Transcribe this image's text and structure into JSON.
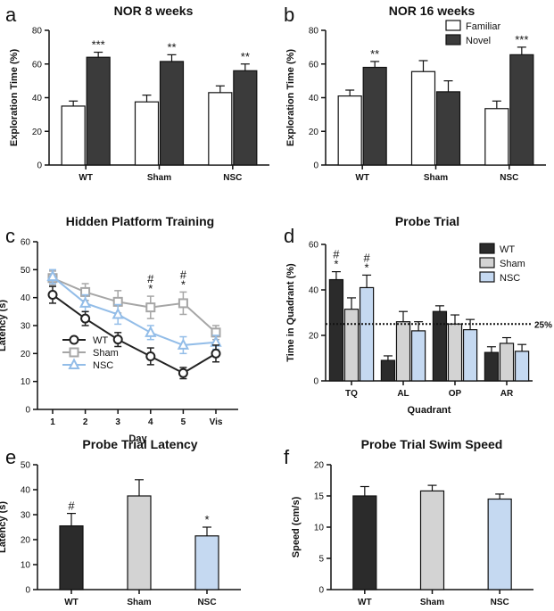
{
  "colors": {
    "WT": "#2b2b2b",
    "Sham": "#d3d3d3",
    "NSC": "#c5d9f1",
    "Familiar": "#ffffff",
    "Novel": "#3b3b3b",
    "line_WT": "#222222",
    "line_Sham": "#a6a6a6",
    "line_NSC": "#93bde8"
  },
  "chart_data": [
    {
      "id": "a",
      "type": "bar",
      "letter": "a",
      "title": "NOR 8 weeks",
      "ylabel": "Exploration Time (%)",
      "ylim": [
        0,
        80
      ],
      "yticks": [
        0,
        20,
        40,
        60,
        80
      ],
      "categories": [
        "WT",
        "Sham",
        "NSC"
      ],
      "series": [
        {
          "name": "Familiar",
          "values": [
            35,
            37.5,
            43
          ],
          "errors": [
            3,
            4,
            4
          ]
        },
        {
          "name": "Novel",
          "values": [
            64,
            61.5,
            56
          ],
          "errors": [
            3,
            4,
            4
          ]
        }
      ],
      "annotations": [
        {
          "series": 1,
          "index": 0,
          "text": "***"
        },
        {
          "series": 1,
          "index": 1,
          "text": "**"
        },
        {
          "series": 1,
          "index": 2,
          "text": "**"
        }
      ]
    },
    {
      "id": "b",
      "type": "bar",
      "letter": "b",
      "title": "NOR 16 weeks",
      "ylabel": "Exploration Time (%)",
      "ylim": [
        0,
        80
      ],
      "yticks": [
        0,
        20,
        40,
        60,
        80
      ],
      "categories": [
        "WT",
        "Sham",
        "NSC"
      ],
      "legend": [
        "Familiar",
        "Novel"
      ],
      "legend_position": "top-right",
      "series": [
        {
          "name": "Familiar",
          "values": [
            41,
            55.5,
            33.5
          ],
          "errors": [
            3.5,
            6.5,
            4.5
          ]
        },
        {
          "name": "Novel",
          "values": [
            58,
            43.5,
            65.5
          ],
          "errors": [
            3.5,
            6.5,
            4.5
          ]
        }
      ],
      "annotations": [
        {
          "series": 1,
          "index": 0,
          "text": "**"
        },
        {
          "series": 1,
          "index": 2,
          "text": "***"
        }
      ]
    },
    {
      "id": "c",
      "type": "line",
      "letter": "c",
      "title": "Hidden Platform Training",
      "ylabel": "Latency (s)",
      "xlabel": "Day",
      "ylim": [
        0,
        60
      ],
      "yticks": [
        0,
        10,
        20,
        30,
        40,
        50,
        60
      ],
      "x": [
        "1",
        "2",
        "3",
        "4",
        "5",
        "Vis"
      ],
      "legend": [
        "WT",
        "Sham",
        "NSC"
      ],
      "legend_position": "bottom-left",
      "series": [
        {
          "name": "WT",
          "marker": "circle",
          "values": [
            41,
            32.5,
            25,
            19,
            13,
            20
          ],
          "errors": [
            3,
            2.5,
            2.5,
            3,
            2,
            3
          ]
        },
        {
          "name": "Sham",
          "marker": "square",
          "values": [
            47,
            42,
            38.5,
            36.5,
            38,
            27.5
          ],
          "errors": [
            2.5,
            3,
            4,
            4,
            4,
            2.5
          ]
        },
        {
          "name": "NSC",
          "marker": "triangle",
          "values": [
            47.5,
            38,
            34,
            27.5,
            23,
            24
          ],
          "errors": [
            2.5,
            3,
            3.5,
            2.5,
            3,
            2.5
          ]
        }
      ],
      "annotations": [
        {
          "index": 3,
          "lines": [
            "#",
            "*"
          ]
        },
        {
          "index": 4,
          "lines": [
            "#",
            "*"
          ]
        }
      ]
    },
    {
      "id": "d",
      "type": "bar",
      "letter": "d",
      "title": "Probe Trial",
      "ylabel": "Time in Quadrant (%)",
      "xlabel": "Quadrant",
      "ylim": [
        0,
        60
      ],
      "yticks": [
        0,
        20,
        40,
        60
      ],
      "categories": [
        "TQ",
        "AL",
        "OP",
        "AR"
      ],
      "legend": [
        "WT",
        "Sham",
        "NSC"
      ],
      "legend_position": "top-right",
      "reference_line": {
        "value": 25,
        "label": "25%"
      },
      "series": [
        {
          "name": "WT",
          "values": [
            44.5,
            9,
            30.5,
            12.5
          ],
          "errors": [
            3.5,
            2,
            2.5,
            2.5
          ]
        },
        {
          "name": "Sham",
          "values": [
            31.5,
            26,
            25,
            16.5
          ],
          "errors": [
            5,
            4.5,
            4,
            2.5
          ]
        },
        {
          "name": "NSC",
          "values": [
            41,
            22,
            22.5,
            13
          ],
          "errors": [
            5.5,
            4,
            4.5,
            3
          ]
        }
      ],
      "annotations": [
        {
          "series": 0,
          "index": 0,
          "lines": [
            "#",
            "*"
          ]
        },
        {
          "series": 2,
          "index": 0,
          "lines": [
            "#",
            "*"
          ]
        }
      ]
    },
    {
      "id": "e",
      "type": "bar",
      "letter": "e",
      "title": "Probe Trial Latency",
      "ylabel": "Latency (s)",
      "ylim": [
        0,
        50
      ],
      "yticks": [
        0,
        10,
        20,
        30,
        40,
        50
      ],
      "categories": [
        "WT",
        "Sham",
        "NSC"
      ],
      "series": [
        {
          "name": "Latency",
          "values": [
            25.5,
            37.5,
            21.5
          ],
          "errors": [
            5,
            6.5,
            3.5
          ]
        }
      ],
      "annotations": [
        {
          "series": 0,
          "index": 0,
          "text": "#"
        },
        {
          "series": 0,
          "index": 2,
          "text": "*"
        }
      ]
    },
    {
      "id": "f",
      "type": "bar",
      "letter": "f",
      "title": "Probe Trial Swim Speed",
      "ylabel": "Speed (cm/s)",
      "ylim": [
        0,
        20
      ],
      "yticks": [
        0,
        5,
        10,
        15,
        20
      ],
      "categories": [
        "WT",
        "Sham",
        "NSC"
      ],
      "series": [
        {
          "name": "Speed",
          "values": [
            15,
            15.8,
            14.5
          ],
          "errors": [
            1.5,
            0.9,
            0.8
          ]
        }
      ],
      "annotations": []
    }
  ]
}
